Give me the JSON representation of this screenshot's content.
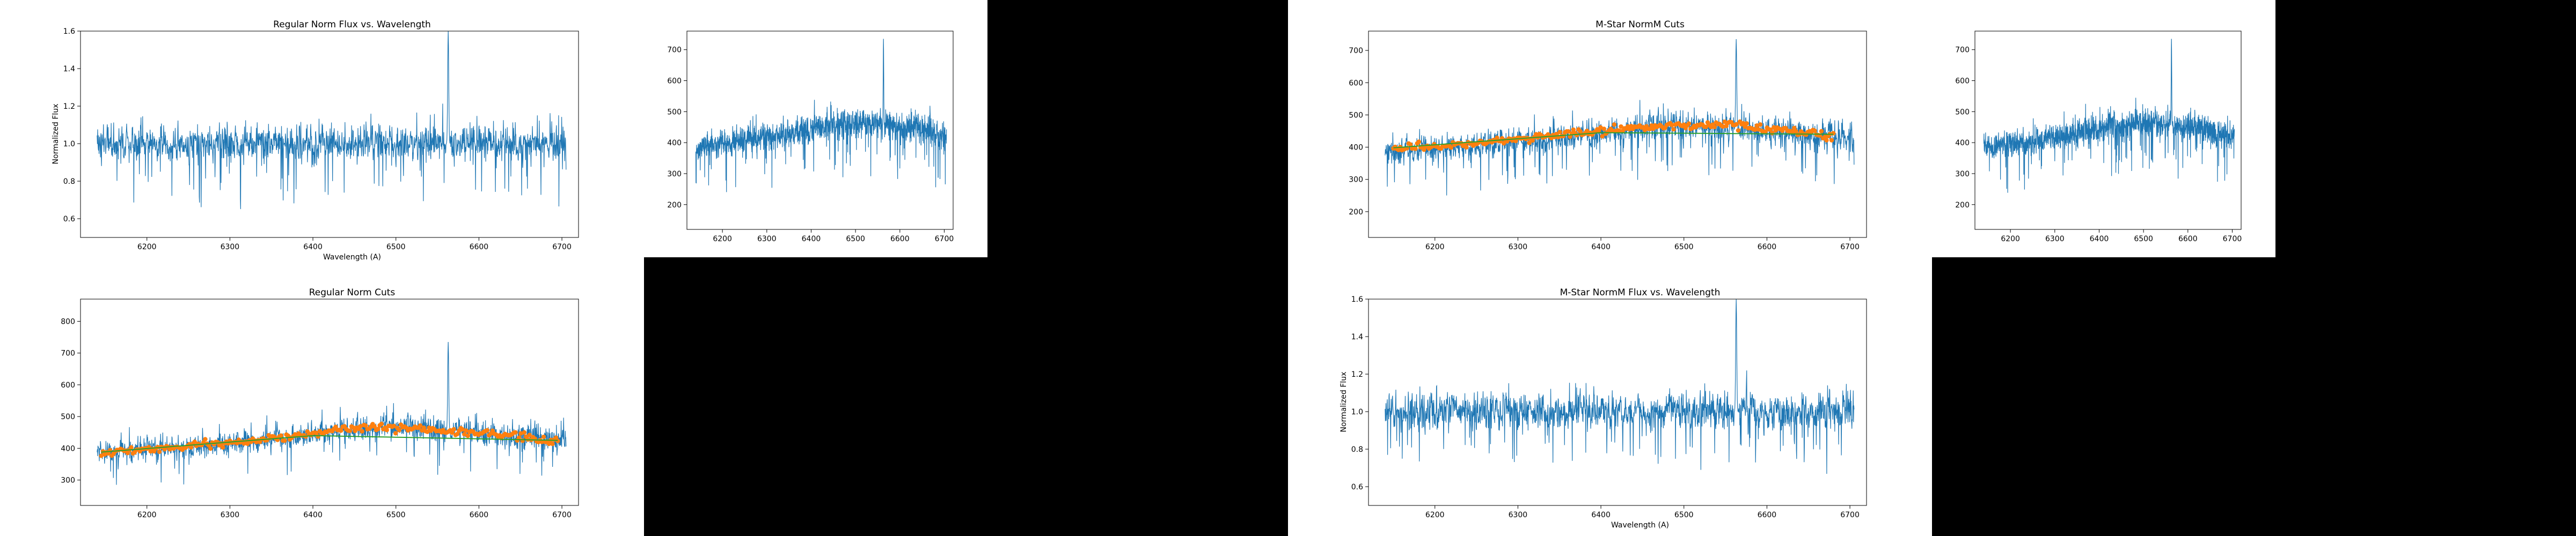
{
  "chart_data": [
    {
      "id": "reg-flux",
      "type": "line",
      "title": "Regular Norm Flux vs. Wavelength",
      "xlabel": "Wavelength (A)",
      "ylabel": "Normalized Flux",
      "xlim": [
        6120,
        6720
      ],
      "ylim": [
        0.5,
        1.6
      ],
      "xticks": [
        6200,
        6300,
        6400,
        6500,
        6600,
        6700
      ],
      "yticks": [
        0.6,
        0.8,
        1.0,
        1.2,
        1.4,
        1.6
      ],
      "series": [
        {
          "kind": "flux",
          "color": "#1f77b4",
          "x_start": 6140,
          "x_end": 6705,
          "baseline": [
            [
              6140,
              1.0
            ],
            [
              6705,
              1.0
            ]
          ],
          "noise_scale": [
            [
              6140,
              0.06
            ],
            [
              6700,
              0.06
            ]
          ],
          "emission": {
            "x": 6563,
            "peak": 1.6
          }
        }
      ]
    },
    {
      "id": "reg-cuts",
      "type": "line",
      "title": "Regular Norm Cuts",
      "xlabel": "",
      "ylabel": "",
      "xlim": [
        6120,
        6720
      ],
      "ylim": [
        220,
        870
      ],
      "xticks": [
        6200,
        6300,
        6400,
        6500,
        6600,
        6700
      ],
      "yticks": [
        300,
        400,
        500,
        600,
        700,
        800
      ],
      "series": [
        {
          "kind": "flux",
          "color": "#1f77b4",
          "x_start": 6140,
          "x_end": 6705,
          "baseline": [
            [
              6140,
              385
            ],
            [
              6250,
              405
            ],
            [
              6350,
              430
            ],
            [
              6450,
              460
            ],
            [
              6500,
              465
            ],
            [
              6600,
              450
            ],
            [
              6705,
              425
            ]
          ],
          "noise_scale": [
            [
              6140,
              20
            ],
            [
              6700,
              28
            ]
          ],
          "emission": {
            "x": 6563,
            "peak": 735
          }
        },
        {
          "kind": "points",
          "color": "#ff7f0e",
          "x_start": 6145,
          "x_end": 6695,
          "baseline": [
            [
              6145,
              385
            ],
            [
              6250,
              405
            ],
            [
              6350,
              430
            ],
            [
              6450,
              462
            ],
            [
              6500,
              466
            ],
            [
              6600,
              450
            ],
            [
              6695,
              425
            ]
          ]
        },
        {
          "kind": "fit",
          "color": "#2ca02c",
          "points": [
            [
              6145,
              388
            ],
            [
              6400,
              440
            ],
            [
              6695,
              425
            ]
          ]
        }
      ]
    },
    {
      "id": "raw-1",
      "type": "line",
      "title": "",
      "xlabel": "",
      "ylabel": "",
      "xlim": [
        6120,
        6720
      ],
      "ylim": [
        120,
        760
      ],
      "xticks": [
        6200,
        6300,
        6400,
        6500,
        6600,
        6700
      ],
      "yticks": [
        200,
        300,
        400,
        500,
        600,
        700
      ],
      "series": [
        {
          "kind": "flux",
          "color": "#1f77b4",
          "x_start": 6140,
          "x_end": 6705,
          "baseline": [
            [
              6140,
              385
            ],
            [
              6250,
              405
            ],
            [
              6350,
              430
            ],
            [
              6450,
              460
            ],
            [
              6500,
              465
            ],
            [
              6600,
              450
            ],
            [
              6705,
              425
            ]
          ],
          "noise_scale": [
            [
              6140,
              25
            ],
            [
              6700,
              30
            ]
          ],
          "emission": {
            "x": 6563,
            "peak": 735
          }
        }
      ]
    },
    {
      "id": "mstar-cuts",
      "type": "line",
      "title": "M-Star NormM Cuts",
      "xlabel": "",
      "ylabel": "",
      "xlim": [
        6120,
        6720
      ],
      "ylim": [
        120,
        760
      ],
      "xticks": [
        6200,
        6300,
        6400,
        6500,
        6600,
        6700
      ],
      "yticks": [
        200,
        300,
        400,
        500,
        600,
        700
      ],
      "series": [
        {
          "kind": "flux",
          "color": "#1f77b4",
          "x_start": 6140,
          "x_end": 6705,
          "baseline": [
            [
              6140,
              385
            ],
            [
              6250,
              405
            ],
            [
              6350,
              430
            ],
            [
              6450,
              460
            ],
            [
              6500,
              465
            ],
            [
              6600,
              450
            ],
            [
              6705,
              425
            ]
          ],
          "noise_scale": [
            [
              6140,
              25
            ],
            [
              6700,
              30
            ]
          ],
          "emission": {
            "x": 6563,
            "peak": 735
          }
        },
        {
          "kind": "points",
          "color": "#ff7f0e",
          "x_start": 6150,
          "x_end": 6680,
          "baseline": [
            [
              6150,
              395
            ],
            [
              6250,
              410
            ],
            [
              6350,
              440
            ],
            [
              6450,
              462
            ],
            [
              6550,
              470
            ],
            [
              6680,
              438
            ]
          ]
        },
        {
          "kind": "fit",
          "color": "#2ca02c",
          "points": [
            [
              6150,
              398
            ],
            [
              6400,
              445
            ],
            [
              6680,
              440
            ]
          ]
        }
      ]
    },
    {
      "id": "mstar-flux",
      "type": "line",
      "title": "M-Star NormM Flux vs. Wavelength",
      "xlabel": "Wavelength (A)",
      "ylabel": "Normalized Flux",
      "xlim": [
        6120,
        6720
      ],
      "ylim": [
        0.5,
        1.6
      ],
      "xticks": [
        6200,
        6300,
        6400,
        6500,
        6600,
        6700
      ],
      "yticks": [
        0.6,
        0.8,
        1.0,
        1.2,
        1.4,
        1.6
      ],
      "series": [
        {
          "kind": "flux",
          "color": "#1f77b4",
          "x_start": 6140,
          "x_end": 6705,
          "baseline": [
            [
              6140,
              1.0
            ],
            [
              6705,
              1.0
            ]
          ],
          "noise_scale": [
            [
              6140,
              0.06
            ],
            [
              6700,
              0.06
            ]
          ],
          "emission": {
            "x": 6563,
            "peak": 1.6
          }
        }
      ]
    },
    {
      "id": "raw-2",
      "type": "line",
      "title": "",
      "xlabel": "",
      "ylabel": "",
      "xlim": [
        6120,
        6720
      ],
      "ylim": [
        120,
        760
      ],
      "xticks": [
        6200,
        6300,
        6400,
        6500,
        6600,
        6700
      ],
      "yticks": [
        200,
        300,
        400,
        500,
        600,
        700
      ],
      "series": [
        {
          "kind": "flux",
          "color": "#1f77b4",
          "x_start": 6140,
          "x_end": 6705,
          "baseline": [
            [
              6140,
              385
            ],
            [
              6250,
              405
            ],
            [
              6350,
              430
            ],
            [
              6450,
              460
            ],
            [
              6500,
              465
            ],
            [
              6600,
              450
            ],
            [
              6705,
              425
            ]
          ],
          "noise_scale": [
            [
              6140,
              25
            ],
            [
              6700,
              30
            ]
          ],
          "emission": {
            "x": 6563,
            "peak": 735
          }
        }
      ]
    }
  ]
}
